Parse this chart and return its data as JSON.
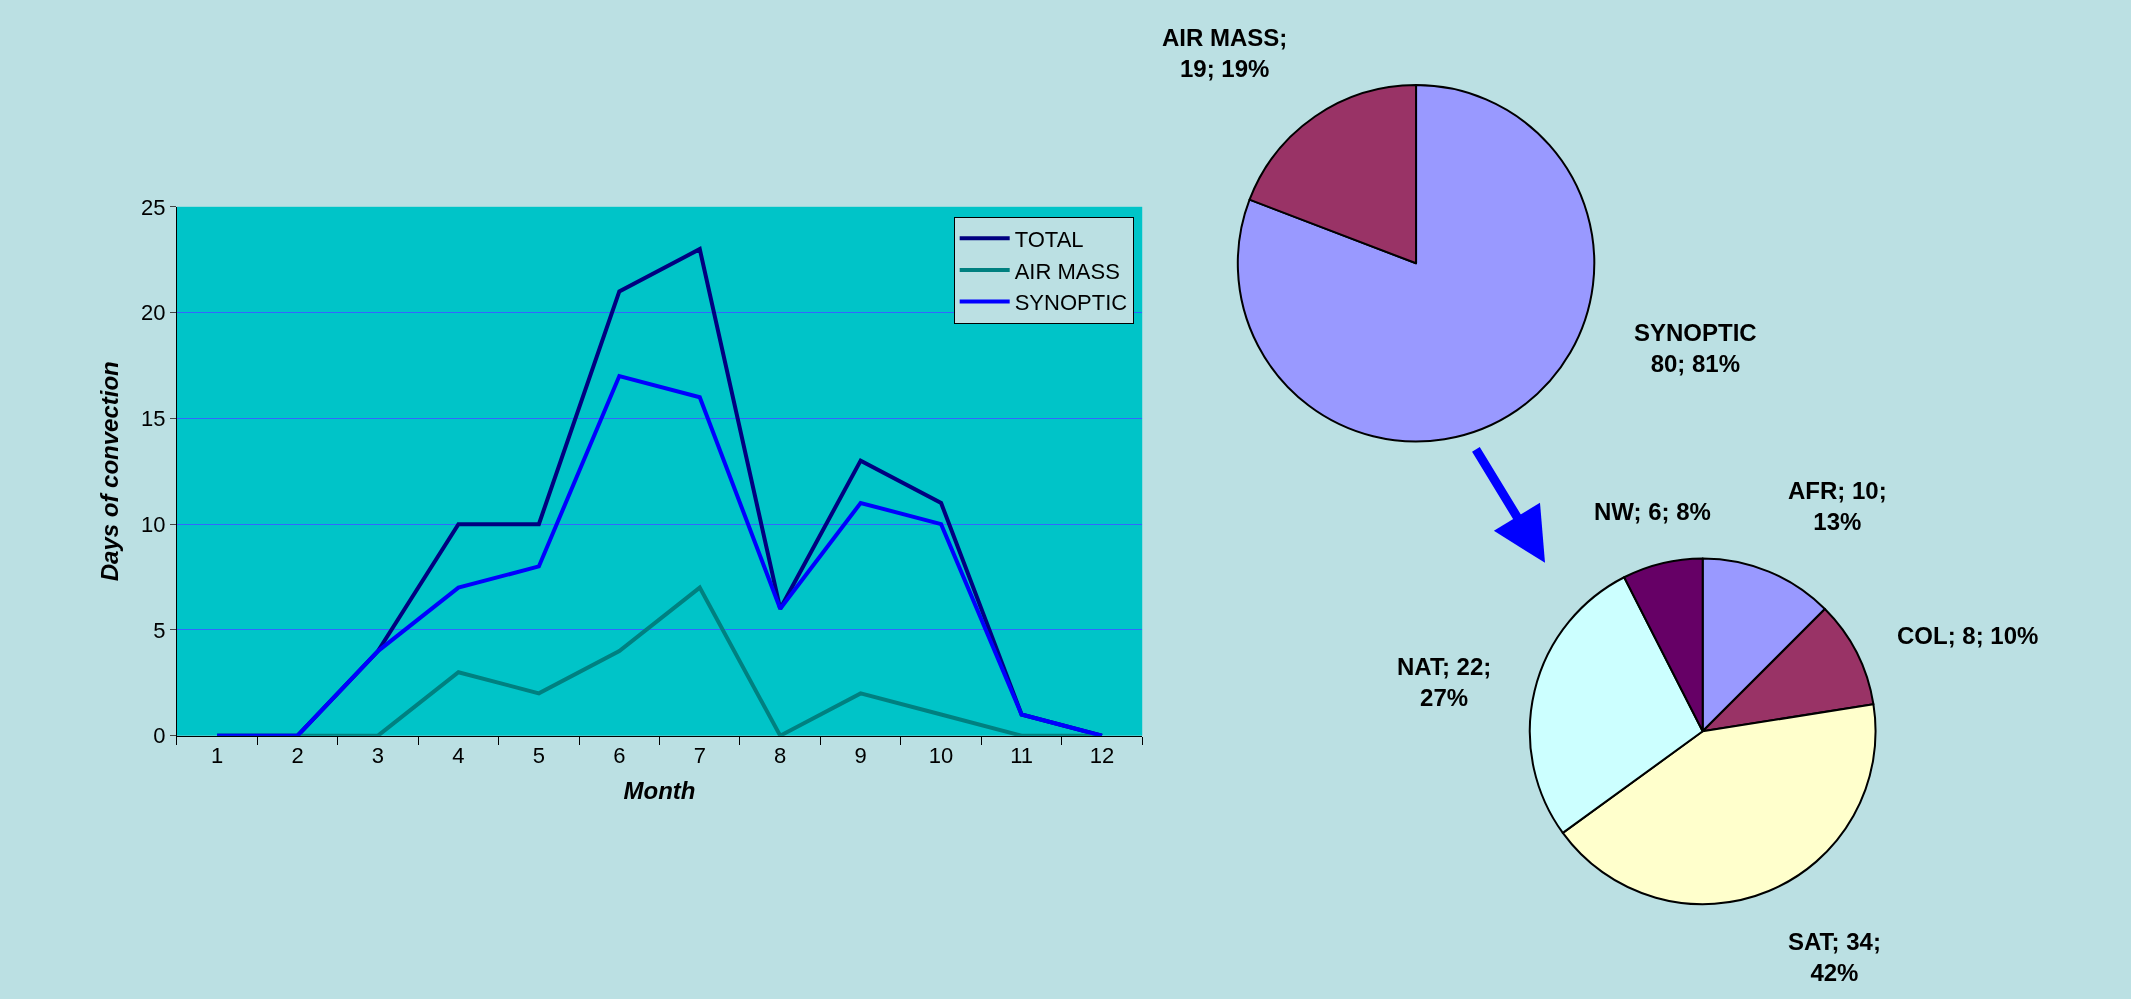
{
  "chart_data": [
    {
      "type": "line",
      "xlabel": "Month",
      "ylabel": "Days of convection",
      "x": [
        1,
        2,
        3,
        4,
        5,
        6,
        7,
        8,
        9,
        10,
        11,
        12
      ],
      "xlim": [
        0.5,
        12.5
      ],
      "xticks": [
        1,
        2,
        3,
        4,
        5,
        6,
        7,
        8,
        9,
        10,
        11,
        12
      ],
      "series": [
        {
          "name": "TOTAL",
          "color": "#000080",
          "values": [
            0,
            0,
            4,
            10,
            10,
            21,
            23,
            6,
            13,
            11,
            1,
            0
          ]
        },
        {
          "name": "AIR MASS",
          "color": "#008080",
          "values": [
            0,
            0,
            0,
            3,
            2,
            4,
            7,
            0,
            2,
            1,
            0,
            0
          ]
        },
        {
          "name": "SYNOPTIC",
          "color": "#0000ff",
          "values": [
            0,
            0,
            4,
            7,
            8,
            17,
            16,
            6,
            11,
            10,
            1,
            0
          ]
        }
      ],
      "ylim": [
        0,
        25
      ],
      "yticks": [
        0,
        5,
        10,
        15,
        20,
        25
      ],
      "grid": "y",
      "legend": "top right",
      "marker": "none",
      "line_style": "solid"
    },
    {
      "type": "pie",
      "categories": [
        "SYNOPTIC",
        "AIR MASS"
      ],
      "values": [
        80,
        19
      ],
      "colors": [
        "#9999ff",
        "#993366"
      ],
      "value_labels": [
        "\n80; 81%",
        ";\n19; 19%"
      ]
    },
    {
      "type": "pie",
      "categories": [
        "AFR",
        "COL",
        "SAT",
        "NAT",
        "NW"
      ],
      "values": [
        10,
        8,
        34,
        22,
        6
      ],
      "colors": [
        "#9999ff",
        "#993366",
        "#ffffcc",
        "#ccffff",
        "#660066"
      ],
      "value_labels": [
        "; 10;\n13%",
        "; 8; 10%",
        "; 34;\n42%",
        "; 22;\n27%",
        "; 6; 8%"
      ]
    }
  ]
}
